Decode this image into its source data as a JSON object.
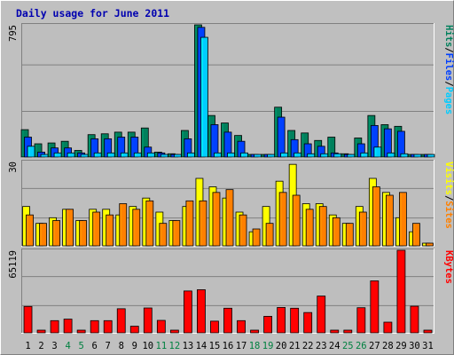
{
  "chart_data": {
    "type": "bar",
    "title": "Daily usage for June 2011",
    "categories": [
      "1",
      "2",
      "3",
      "4",
      "5",
      "6",
      "7",
      "8",
      "9",
      "10",
      "11",
      "12",
      "13",
      "14",
      "15",
      "16",
      "17",
      "18",
      "19",
      "20",
      "21",
      "22",
      "23",
      "24",
      "25",
      "26",
      "27",
      "28",
      "29",
      "30",
      "31"
    ],
    "weekend_days": [
      "4",
      "5",
      "11",
      "12",
      "18",
      "19",
      "25",
      "26"
    ],
    "colors": {
      "background": "#c0c0c0",
      "plot_bg": "#bebebe",
      "title": "#0000b0",
      "hits": "#00805c",
      "files": "#0040ff",
      "pages": "#00ccff",
      "visits": "#ffff00",
      "sites": "#ff8000",
      "kbytes": "#ff0000",
      "weekend_label": "#008040",
      "weekday_label": "#000000"
    },
    "panels": [
      {
        "id": "top",
        "scale_label": "795",
        "ylim": [
          0,
          795
        ],
        "legend": [
          {
            "text": "Hits",
            "color_key": "hits"
          },
          {
            "text": "/",
            "color_key": "slash"
          },
          {
            "text": "Files",
            "color_key": "files"
          },
          {
            "text": "/",
            "color_key": "slash"
          },
          {
            "text": "Pages",
            "color_key": "pages"
          }
        ],
        "series": [
          {
            "name": "Hits",
            "color_key": "hits",
            "values": [
              165,
              80,
              85,
              95,
              40,
              135,
              140,
              150,
              150,
              175,
              30,
              20,
              160,
              795,
              250,
              205,
              130,
              15,
              15,
              300,
              160,
              145,
              100,
              120,
              20,
              115,
              250,
              195,
              185,
              15,
              0
            ]
          },
          {
            "name": "Files",
            "color_key": "files",
            "values": [
              120,
              30,
              55,
              55,
              25,
              110,
              110,
              120,
              120,
              60,
              25,
              15,
              110,
              780,
              195,
              150,
              95,
              10,
              10,
              240,
              105,
              80,
              65,
              25,
              10,
              80,
              190,
              170,
              155,
              10,
              0
            ]
          },
          {
            "name": "Pages",
            "color_key": "pages",
            "values": [
              65,
              15,
              25,
              25,
              15,
              25,
              25,
              25,
              25,
              25,
              15,
              10,
              25,
              720,
              25,
              25,
              25,
              10,
              10,
              25,
              25,
              20,
              20,
              20,
              10,
              25,
              60,
              25,
              20,
              10,
              0
            ]
          }
        ]
      },
      {
        "id": "middle",
        "scale_label": "30",
        "ylim": [
          0,
          30
        ],
        "legend": [
          {
            "text": "Visits",
            "color_key": "visits"
          },
          {
            "text": "/",
            "color_key": "slash"
          },
          {
            "text": "Sites",
            "color_key": "sites"
          }
        ],
        "series": [
          {
            "name": "Visits",
            "color_key": "visits",
            "values": [
              14,
              8,
              10,
              13,
              9,
              13,
              13,
              11,
              14,
              17,
              12,
              9,
              14,
              24,
              21,
              17,
              12,
              5,
              14,
              23,
              29,
              15,
              15,
              11,
              8,
              14,
              24,
              19,
              10,
              5,
              0
            ]
          },
          {
            "name": "Sites",
            "color_key": "sites",
            "values": [
              11,
              8,
              9,
              13,
              9,
              12,
              11,
              15,
              13,
              16,
              8,
              9,
              16,
              16,
              19,
              20,
              11,
              6,
              8,
              19,
              18,
              13,
              14,
              10,
              8,
              12,
              21,
              18,
              19,
              8,
              0
            ]
          }
        ]
      },
      {
        "id": "bottom",
        "scale_label": "65119",
        "ylim": [
          0,
          65119
        ],
        "legend": [
          {
            "text": "KBytes",
            "color_key": "kbytes"
          }
        ],
        "series": [
          {
            "name": "KBytes",
            "color_key": "kbytes",
            "values": [
              20800,
              0,
              9600,
              10800,
              0,
              9600,
              9600,
              19000,
              5200,
              19600,
              9800,
              0,
              33000,
              34000,
              9200,
              19400,
              9600,
              0,
              13000,
              20000,
              19400,
              16000,
              29000,
              0,
              0,
              19800,
              41000,
              8400,
              65119,
              21000,
              0
            ]
          }
        ]
      }
    ]
  }
}
